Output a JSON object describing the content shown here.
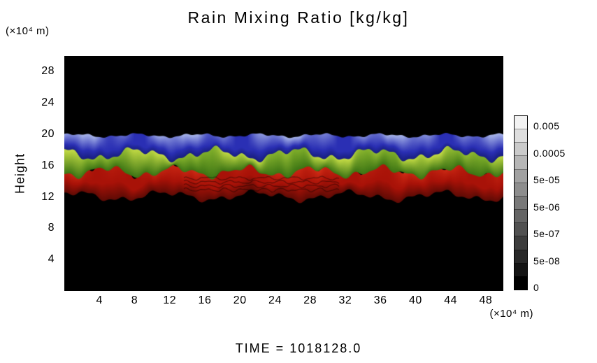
{
  "figure": {
    "title": "Rain Mixing Ratio [kg/kg]",
    "y_axis_label": "Height",
    "y_axis_unit": "(×10⁴ m)",
    "x_axis_unit": "(×10⁴ m)",
    "time_label": "TIME = 1018128.0"
  },
  "chart_data": {
    "type": "heatmap",
    "title": "Rain Mixing Ratio [kg/kg]",
    "xlabel": "(×10⁴ m)",
    "ylabel": "Height",
    "ylabel_unit": "(×10⁴ m)",
    "time": 1018128.0,
    "xlim": [
      0,
      50
    ],
    "ylim": [
      0,
      30
    ],
    "x_ticks": [
      4,
      8,
      12,
      16,
      20,
      24,
      28,
      32,
      36,
      40,
      44,
      48
    ],
    "y_ticks": [
      4,
      8,
      12,
      16,
      20,
      24,
      28
    ],
    "background_color": "#000000",
    "grid": false,
    "colorbar": {
      "orientation": "vertical",
      "position": "right",
      "style": "grayscale-steps",
      "segments": 13,
      "labels": [
        "0.005",
        "0.0005",
        "5e-05",
        "5e-06",
        "5e-07",
        "5e-08",
        "0"
      ],
      "top_color": "#f2f2f2",
      "bottom_color": "#000000"
    },
    "bands": [
      {
        "name": "upper-blue-band",
        "description": "patchy blue band near cloud top, pale periwinkle wisps at the very top",
        "colors": [
          "#a9b6ea",
          "#2a2fb4",
          "#141a72"
        ],
        "top": 19.85,
        "bottom": 17.2,
        "waviness": 1.1
      },
      {
        "name": "middle-green-band",
        "description": "wavy yellow-green band overlying the rain core",
        "colors": [
          "#c6dd46",
          "#7fae2a",
          "#3c7414"
        ],
        "top": 17.2,
        "bottom": 15.2,
        "waviness": 1.0
      },
      {
        "name": "lower-red-band",
        "description": "thick turbulent red rain-core band with dark striations, black gaps in places",
        "colors": [
          "#d83018",
          "#a81208",
          "#5f0b05"
        ],
        "top": 15.7,
        "bottom": 12.1,
        "waviness": 0.9
      }
    ]
  }
}
